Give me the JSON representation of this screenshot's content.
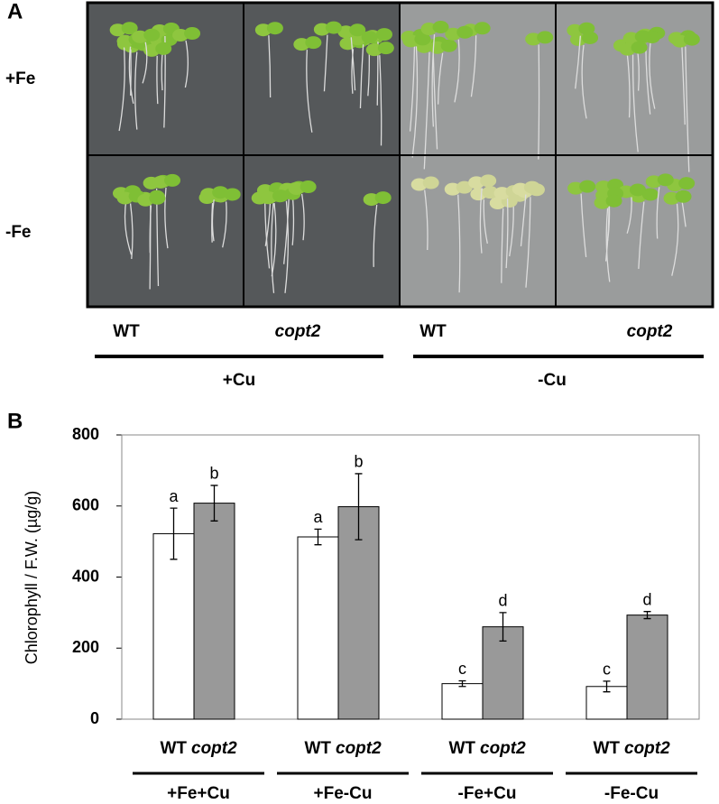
{
  "panel_a": {
    "label": "A",
    "row_labels": [
      "+Fe",
      "-Fe"
    ],
    "column_labels": [
      "WT",
      "copt2",
      "WT",
      "copt2"
    ],
    "group_labels": [
      "+Cu",
      "-Cu"
    ]
  },
  "chart_data": {
    "type": "bar",
    "panel_label": "B",
    "y_label": "Chlorophyll / F.W. (µg/g)",
    "categories": [
      "+Fe+Cu",
      "+Fe-Cu",
      "-Fe+Cu",
      "-Fe-Cu"
    ],
    "series": [
      {
        "name": "WT",
        "color": "#ffffff",
        "values": [
          522,
          513,
          100,
          92
        ],
        "errors": [
          72,
          22,
          8,
          15
        ],
        "letters": [
          "a",
          "a",
          "c",
          "c"
        ]
      },
      {
        "name": "copt2",
        "color": "#999999",
        "values": [
          608,
          598,
          260,
          293
        ],
        "errors": [
          50,
          93,
          40,
          10
        ],
        "letters": [
          "b",
          "b",
          "d",
          "d"
        ]
      }
    ],
    "ylim": [
      0,
      800
    ],
    "yticks": [
      0,
      200,
      400,
      600,
      800
    ]
  }
}
